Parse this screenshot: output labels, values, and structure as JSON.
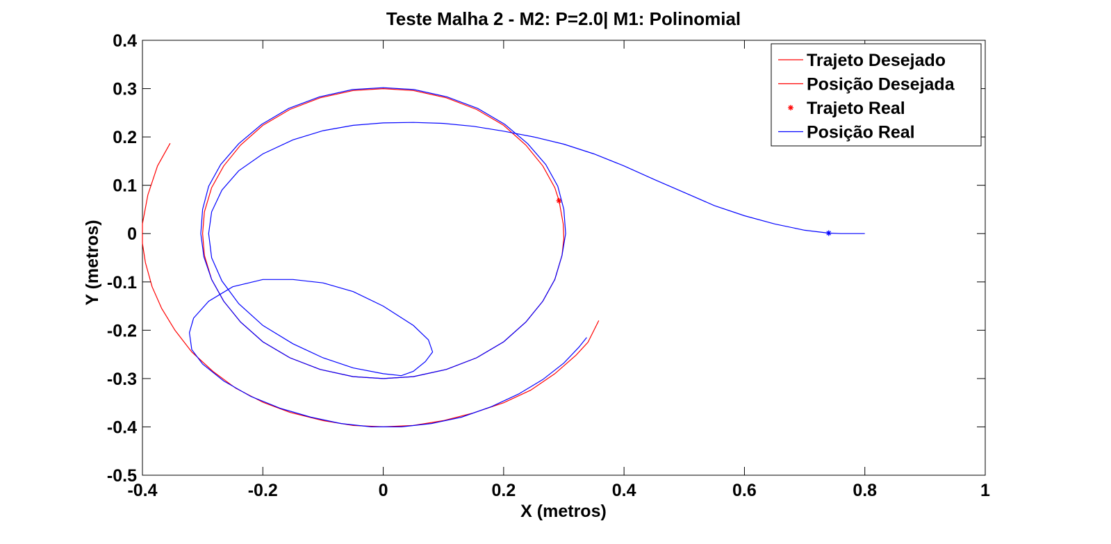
{
  "chart_data": {
    "type": "line",
    "title": "Teste Malha 2 - M2: P=2.0| M1: Polinomial",
    "xlabel": "X (metros)",
    "ylabel": "Y (metros)",
    "xlim": [
      -0.4,
      1
    ],
    "ylim": [
      -0.5,
      0.4
    ],
    "xticks": [
      -0.4,
      -0.2,
      0,
      0.2,
      0.4,
      0.6,
      0.8,
      1
    ],
    "xtick_labels": [
      "-0.4",
      "-0.2",
      "0",
      "0.2",
      "0.4",
      "0.6",
      "0.8",
      "1"
    ],
    "yticks": [
      -0.5,
      -0.4,
      -0.3,
      -0.2,
      -0.1,
      0,
      0.1,
      0.2,
      0.3,
      0.4
    ],
    "ytick_labels": [
      "-0.5",
      "-0.4",
      "-0.3",
      "-0.2",
      "-0.1",
      "0",
      "0.1",
      "0.2",
      "0.3",
      "0.4"
    ],
    "grid": false,
    "legend_position": "top-right",
    "series": [
      {
        "name": "Trajeto Desejado",
        "color": "#ff0000",
        "style": "line",
        "points": [
          [
            -0.354,
            0.187
          ],
          [
            -0.375,
            0.14
          ],
          [
            -0.391,
            0.08
          ],
          [
            -0.4,
            0.02
          ],
          [
            -0.4,
            -0.02
          ],
          [
            -0.395,
            -0.06
          ],
          [
            -0.384,
            -0.11
          ],
          [
            -0.368,
            -0.155
          ],
          [
            -0.346,
            -0.2
          ],
          [
            -0.318,
            -0.245
          ],
          [
            -0.283,
            -0.285
          ],
          [
            -0.245,
            -0.32
          ],
          [
            -0.2,
            -0.349
          ],
          [
            -0.155,
            -0.37
          ],
          [
            -0.1,
            -0.387
          ],
          [
            -0.05,
            -0.397
          ],
          [
            0.0,
            -0.4
          ],
          [
            0.05,
            -0.397
          ],
          [
            0.1,
            -0.387
          ],
          [
            0.15,
            -0.371
          ],
          [
            0.2,
            -0.35
          ],
          [
            0.245,
            -0.324
          ],
          [
            0.285,
            -0.29
          ],
          [
            0.32,
            -0.252
          ],
          [
            0.34,
            -0.225
          ],
          [
            0.358,
            -0.18
          ]
        ]
      },
      {
        "name": "Posição Desejada",
        "color": "#ff0000",
        "style": "line",
        "points": [
          [
            0.292,
            0.068
          ],
          [
            0.299,
            0.02
          ],
          [
            0.3,
            -0.01
          ],
          [
            0.297,
            -0.045
          ],
          [
            0.285,
            -0.095
          ],
          [
            0.265,
            -0.14
          ],
          [
            0.237,
            -0.183
          ],
          [
            0.2,
            -0.224
          ],
          [
            0.155,
            -0.257
          ],
          [
            0.105,
            -0.281
          ],
          [
            0.05,
            -0.296
          ],
          [
            0.0,
            -0.3
          ],
          [
            -0.05,
            -0.296
          ],
          [
            -0.105,
            -0.281
          ],
          [
            -0.155,
            -0.257
          ],
          [
            -0.2,
            -0.224
          ],
          [
            -0.237,
            -0.183
          ],
          [
            -0.265,
            -0.14
          ],
          [
            -0.285,
            -0.095
          ],
          [
            -0.297,
            -0.045
          ],
          [
            -0.3,
            0.0
          ],
          [
            -0.297,
            0.045
          ],
          [
            -0.285,
            0.095
          ],
          [
            -0.265,
            0.14
          ],
          [
            -0.237,
            0.183
          ],
          [
            -0.2,
            0.224
          ],
          [
            -0.155,
            0.257
          ],
          [
            -0.105,
            0.281
          ],
          [
            -0.05,
            0.296
          ],
          [
            0.0,
            0.3
          ],
          [
            0.05,
            0.296
          ],
          [
            0.105,
            0.281
          ],
          [
            0.155,
            0.257
          ],
          [
            0.2,
            0.224
          ],
          [
            0.237,
            0.183
          ],
          [
            0.265,
            0.14
          ],
          [
            0.285,
            0.095
          ],
          [
            0.292,
            0.068
          ]
        ]
      },
      {
        "name": "Trajeto Real",
        "color": "#ff0000",
        "style": "marker",
        "points": [
          [
            0.292,
            0.068
          ]
        ]
      },
      {
        "name": "Posição Real",
        "color": "#0000ff",
        "style": "line",
        "points": [
          [
            0.8,
            0.0
          ],
          [
            0.76,
            0.0
          ],
          [
            0.74,
            0.001
          ],
          [
            0.7,
            0.007
          ],
          [
            0.65,
            0.02
          ],
          [
            0.6,
            0.037
          ],
          [
            0.55,
            0.058
          ],
          [
            0.5,
            0.085
          ],
          [
            0.45,
            0.112
          ],
          [
            0.4,
            0.14
          ],
          [
            0.35,
            0.165
          ],
          [
            0.3,
            0.185
          ],
          [
            0.25,
            0.2
          ],
          [
            0.2,
            0.212
          ],
          [
            0.15,
            0.222
          ],
          [
            0.1,
            0.228
          ],
          [
            0.05,
            0.23
          ],
          [
            0.0,
            0.229
          ],
          [
            -0.05,
            0.224
          ],
          [
            -0.1,
            0.213
          ],
          [
            -0.15,
            0.194
          ],
          [
            -0.2,
            0.165
          ],
          [
            -0.24,
            0.13
          ],
          [
            -0.268,
            0.09
          ],
          [
            -0.285,
            0.045
          ],
          [
            -0.29,
            0.0
          ],
          [
            -0.285,
            -0.05
          ],
          [
            -0.268,
            -0.098
          ],
          [
            -0.24,
            -0.145
          ],
          [
            -0.2,
            -0.19
          ],
          [
            -0.15,
            -0.228
          ],
          [
            -0.1,
            -0.257
          ],
          [
            -0.05,
            -0.278
          ],
          [
            0.0,
            -0.29
          ],
          [
            0.03,
            -0.294
          ],
          [
            0.05,
            -0.285
          ],
          [
            0.07,
            -0.265
          ],
          [
            0.082,
            -0.245
          ],
          [
            0.075,
            -0.22
          ],
          [
            0.05,
            -0.19
          ],
          [
            0.0,
            -0.15
          ],
          [
            -0.05,
            -0.12
          ],
          [
            -0.1,
            -0.102
          ],
          [
            -0.15,
            -0.095
          ],
          [
            -0.2,
            -0.095
          ],
          [
            -0.25,
            -0.11
          ],
          [
            -0.29,
            -0.14
          ],
          [
            -0.315,
            -0.175
          ],
          [
            -0.322,
            -0.205
          ],
          [
            -0.318,
            -0.24
          ],
          [
            -0.3,
            -0.27
          ],
          [
            -0.265,
            -0.305
          ],
          [
            -0.22,
            -0.337
          ],
          [
            -0.17,
            -0.362
          ],
          [
            -0.12,
            -0.38
          ],
          [
            -0.07,
            -0.393
          ],
          [
            -0.02,
            -0.4
          ],
          [
            0.03,
            -0.4
          ],
          [
            0.08,
            -0.393
          ],
          [
            0.13,
            -0.38
          ],
          [
            0.18,
            -0.358
          ],
          [
            0.225,
            -0.332
          ],
          [
            0.265,
            -0.302
          ],
          [
            0.3,
            -0.268
          ],
          [
            0.325,
            -0.235
          ],
          [
            0.338,
            -0.215
          ]
        ]
      },
      {
        "name": "",
        "color": "#0000ff",
        "style": "line",
        "points": [
          [
            0.0,
            -0.3
          ],
          [
            0.05,
            -0.296
          ],
          [
            0.105,
            -0.281
          ],
          [
            0.155,
            -0.257
          ],
          [
            0.2,
            -0.224
          ],
          [
            0.237,
            -0.183
          ],
          [
            0.265,
            -0.14
          ],
          [
            0.285,
            -0.095
          ],
          [
            0.297,
            -0.045
          ],
          [
            0.303,
            0.0
          ],
          [
            0.3,
            0.05
          ],
          [
            0.29,
            0.098
          ],
          [
            0.27,
            0.143
          ],
          [
            0.24,
            0.186
          ],
          [
            0.202,
            0.226
          ],
          [
            0.157,
            0.259
          ],
          [
            0.106,
            0.283
          ],
          [
            0.051,
            0.298
          ],
          [
            0.0,
            0.302
          ],
          [
            -0.051,
            0.298
          ],
          [
            -0.106,
            0.283
          ],
          [
            -0.157,
            0.259
          ],
          [
            -0.202,
            0.226
          ],
          [
            -0.24,
            0.186
          ],
          [
            -0.27,
            0.143
          ],
          [
            -0.29,
            0.098
          ],
          [
            -0.3,
            0.05
          ],
          [
            -0.303,
            0.0
          ],
          [
            -0.298,
            -0.048
          ],
          [
            -0.285,
            -0.095
          ],
          [
            -0.265,
            -0.14
          ],
          [
            -0.237,
            -0.183
          ],
          [
            -0.2,
            -0.224
          ],
          [
            -0.155,
            -0.257
          ],
          [
            -0.105,
            -0.281
          ],
          [
            -0.05,
            -0.296
          ],
          [
            0.0,
            -0.3
          ]
        ]
      },
      {
        "name": "",
        "color": "#0000ff",
        "style": "marker",
        "points": [
          [
            0.74,
            0.001
          ]
        ]
      }
    ],
    "legend": [
      {
        "label": "Trajeto Desejado",
        "color": "#ff0000",
        "symbol": "line"
      },
      {
        "label": "Posição Desejada",
        "color": "#ff0000",
        "symbol": "line"
      },
      {
        "label": "Trajeto Real",
        "color": "#ff0000",
        "symbol": "marker"
      },
      {
        "label": "Posição Real",
        "color": "#0000ff",
        "symbol": "line"
      }
    ]
  }
}
